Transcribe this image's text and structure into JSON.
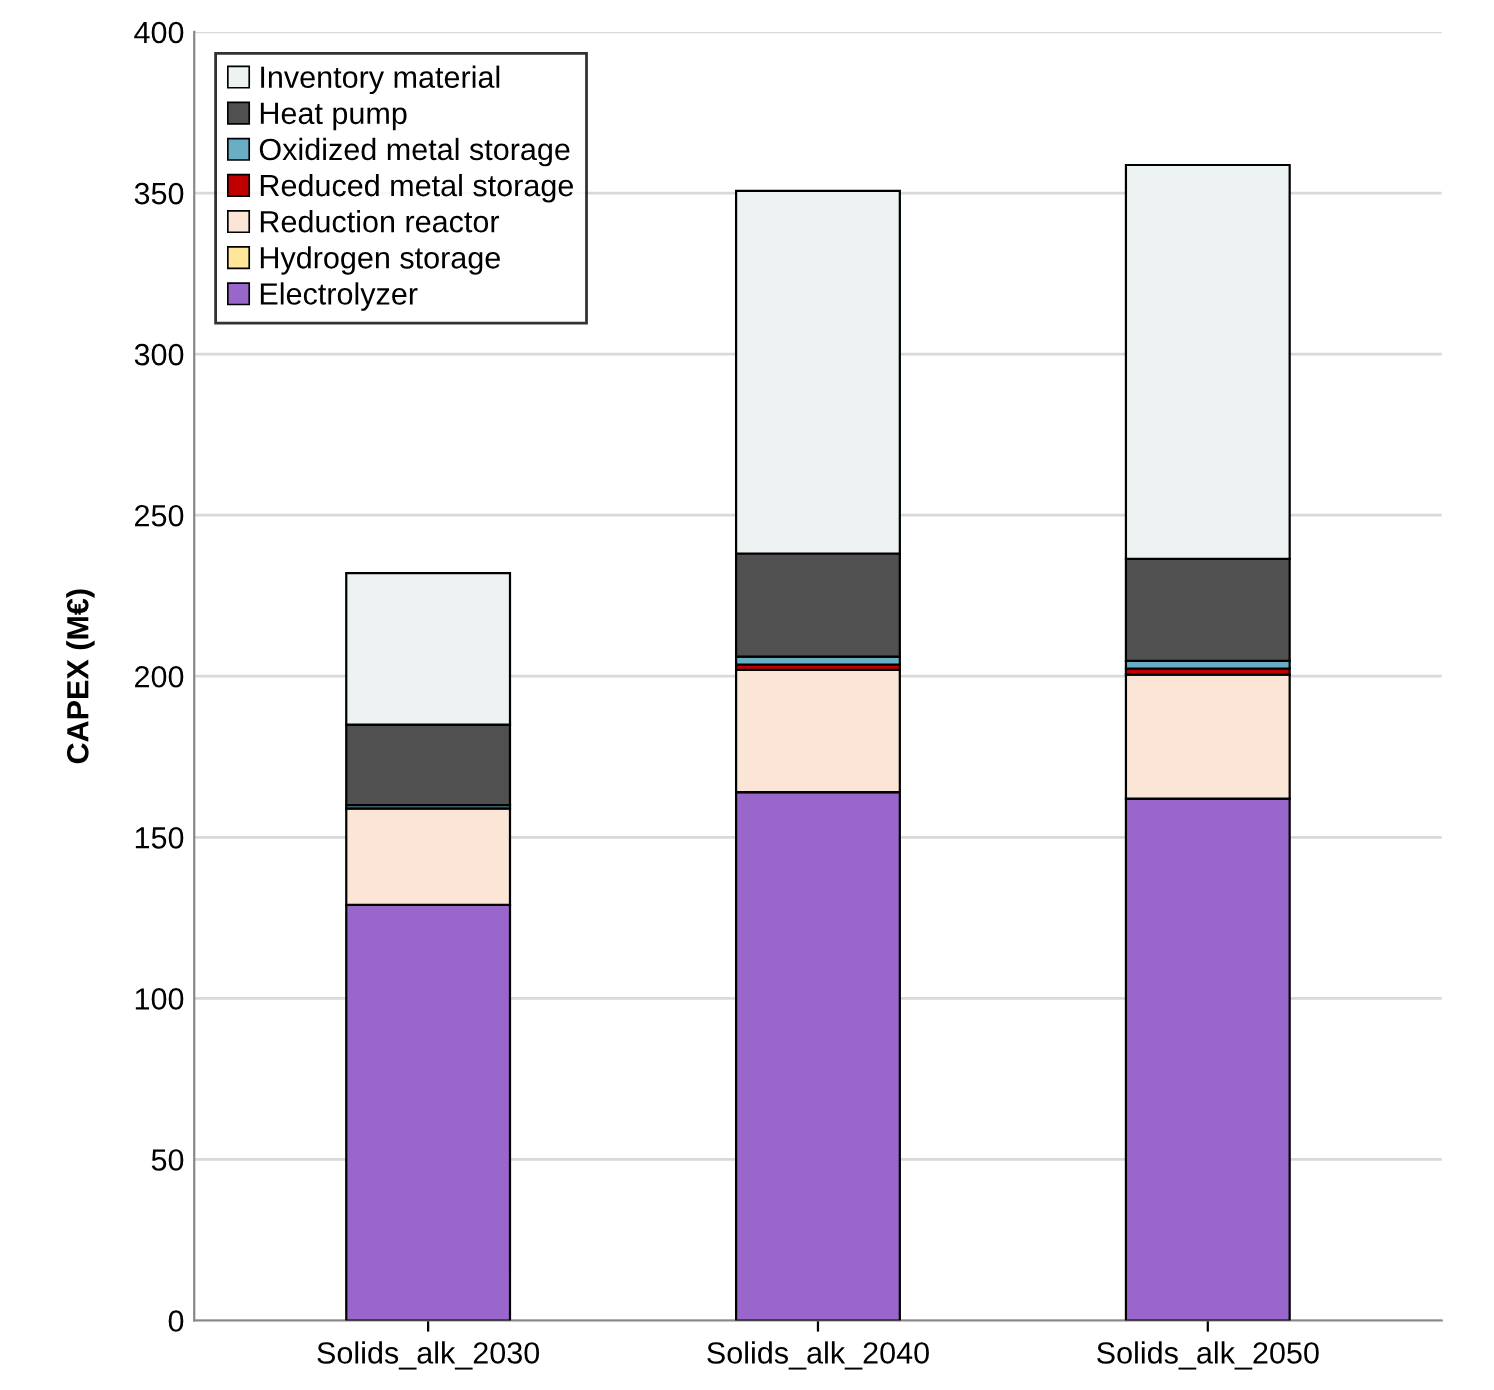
{
  "chart_data": {
    "type": "bar",
    "stacked": true,
    "ylabel": "CAPEX (M€)",
    "categories": [
      "Solids_alk_2030",
      "Solids_alk_2040",
      "Solids_alk_2050"
    ],
    "series": [
      {
        "name": "Electrolyzer",
        "color": "#9966cc",
        "values": [
          129,
          164,
          162
        ]
      },
      {
        "name": "Hydrogen storage",
        "color": "#ffe699",
        "values": [
          null,
          null,
          null
        ]
      },
      {
        "name": "Reduction reactor",
        "color": "#fbe5d6",
        "values": [
          30,
          38,
          38.5
        ]
      },
      {
        "name": "Reduced metal storage",
        "color": "#c00000",
        "values": [
          null,
          1.6,
          1.9
        ]
      },
      {
        "name": "Oxidized metal storage",
        "color": "#6aaec6",
        "values": [
          1,
          2.5,
          2.4
        ]
      },
      {
        "name": "Heat pump",
        "color": "#505050",
        "values": [
          25,
          32,
          31.6
        ]
      },
      {
        "name": "Inventory material",
        "color": "#edf3f3",
        "values": [
          47,
          112.6,
          122.3
        ]
      }
    ],
    "ylim": [
      0,
      400
    ],
    "yticks": [
      0,
      50,
      100,
      150,
      200,
      250,
      300,
      350,
      400
    ],
    "grid": "y",
    "legend": "top left"
  }
}
